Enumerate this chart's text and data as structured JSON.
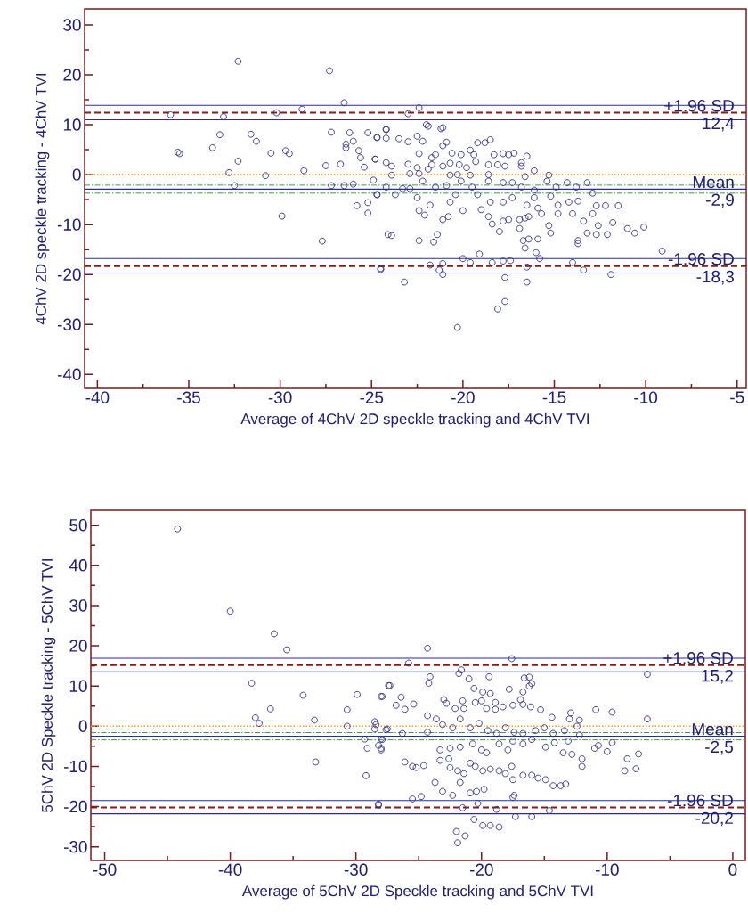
{
  "chart_data": [
    {
      "type": "scatter",
      "xlabel": "Average of 4ChV 2D speckle tracking and 4ChV  TVI",
      "ylabel": "4ChV 2D speckle tracking - 4ChV  TVI",
      "marker": "circle",
      "xlim": [
        -40.7,
        -4.5
      ],
      "ylim": [
        -42.8,
        33.2
      ],
      "xticks": [
        -40,
        -35,
        -30,
        -25,
        -20,
        -15,
        -10,
        -5
      ],
      "yticks": [
        -40,
        -30,
        -20,
        -10,
        0,
        10,
        20,
        30
      ],
      "series": [
        {
          "color": "#2b2b80",
          "x": [
            -32.3,
            -27.3,
            -26.5,
            -36.0,
            -33.1,
            -30.2,
            -28.8,
            -33.3,
            -35.6,
            -35.5,
            -33.7,
            -32.3,
            -32.8,
            -31.6,
            -31.3,
            -30.5,
            -29.7,
            -29.5,
            -30.8,
            -28.7,
            -32.5,
            -29.9,
            -27.7,
            -27.2,
            -27.5,
            -26.7,
            -27.2,
            -26.5,
            -26.0,
            -26.2,
            -26.0,
            -26.4,
            -26.4,
            -25.7,
            -25.6,
            -25.4,
            -25.8,
            -25.2,
            -25.2,
            -25.2,
            -24.7,
            -24.8,
            -24.9,
            -24.7,
            -24.2,
            -24.5,
            -24.1,
            -22.4,
            -23.0,
            -22.0,
            -21.9,
            -21.2,
            -21.1,
            -24.2,
            -24.7,
            -24.2,
            -23.5,
            -23.0,
            -22.5,
            -22.2,
            -21.1,
            -20.9,
            -22.4,
            -21.7,
            -21.5,
            -20.6,
            -20.1,
            -19.6,
            -19.4,
            -19.2,
            -18.8,
            -18.5,
            -18.3,
            -17.8,
            -17.5,
            -17.2,
            -16.5,
            -24.8,
            -24.2,
            -23.9,
            -23.0,
            -22.5,
            -21.9,
            -21.7,
            -21.1,
            -20.7,
            -20.2,
            -19.8,
            -19.3,
            -18.6,
            -18.1,
            -17.7,
            -16.8,
            -16.8,
            -16.1,
            -15.3,
            -23.9,
            -22.9,
            -22.4,
            -20.7,
            -20.3,
            -19.6,
            -18.6,
            -16.6,
            -24.2,
            -23.3,
            -22.9,
            -22.2,
            -21.5,
            -20.9,
            -20.1,
            -19.5,
            -18.6,
            -17.8,
            -17.3,
            -16.8,
            -16.1,
            -15.4,
            -14.9,
            -14.3,
            -13.8,
            -13.2,
            -12.9,
            -24.7,
            -23.7,
            -22.5,
            -21.8,
            -20.7,
            -20.4,
            -19.2,
            -18.5,
            -17.8,
            -17.3,
            -16.5,
            -16.1,
            -15.9,
            -15.2,
            -14.8,
            -14.2,
            -13.7,
            -12.7,
            -12.2,
            -11.5,
            -22.4,
            -22.1,
            -21.1,
            -20.8,
            -20.0,
            -19.0,
            -18.6,
            -18.4,
            -18.0,
            -17.8,
            -17.5,
            -16.9,
            -16.6,
            -16.4,
            -15.7,
            -16.9,
            -15.3,
            -14.8,
            -14.0,
            -13.4,
            -12.9,
            -12.6,
            -12.1,
            -11.8,
            -15.2,
            -13.2,
            -12.7,
            -11.0,
            -10.6,
            -10.1,
            -23.9,
            -22.4,
            -21.6,
            -21.4,
            -16.7,
            -16.4,
            -15.9,
            -16.6,
            -16.0,
            -15.8,
            -13.7,
            -13.7,
            -9.1,
            -20.0,
            -19.6,
            -19.1,
            -18.4,
            -17.8,
            -17.4,
            -21.8,
            -21.3,
            -21.1,
            -21.1,
            -14.0,
            -13.4,
            -11.9,
            -16.5,
            -24.5,
            -23.2,
            -17.7,
            -16.5,
            -18.1,
            -17.7,
            -20.3
          ],
          "values": [
            22.7,
            20.8,
            14.4,
            12.0,
            11.6,
            12.4,
            13.1,
            8.0,
            4.5,
            4.2,
            5.4,
            2.7,
            0.4,
            8.1,
            6.7,
            4.3,
            4.8,
            4.2,
            -0.2,
            0.8,
            -2.2,
            -8.3,
            -13.3,
            8.5,
            1.8,
            2.1,
            -2.2,
            -2.2,
            -1.9,
            8.4,
            6.7,
            6.1,
            5.4,
            4.8,
            3.4,
            1.5,
            -6.2,
            -5.6,
            -7.7,
            8.4,
            7.4,
            3.1,
            -1.1,
            -4.0,
            9.0,
            -19.0,
            -12.0,
            13.4,
            12.2,
            10.0,
            9.7,
            9.2,
            9.4,
            9.1,
            7.5,
            7.3,
            7.2,
            6.6,
            7.7,
            6.7,
            5.8,
            6.5,
            4.2,
            3.4,
            4.0,
            4.3,
            4.0,
            4.9,
            4.0,
            6.4,
            6.4,
            7.0,
            4.0,
            4.2,
            4.0,
            4.3,
            3.7,
            3.1,
            2.4,
            1.7,
            2.1,
            1.4,
            1.1,
            2.0,
            1.7,
            2.3,
            2.0,
            1.4,
            2.6,
            2.0,
            2.0,
            1.7,
            1.7,
            2.4,
            0.8,
            -0.1,
            -0.1,
            0.2,
            0.2,
            -0.1,
            0.0,
            -0.1,
            0.0,
            -0.4,
            -2.5,
            -2.8,
            -2.8,
            -1.3,
            -2.5,
            -2.2,
            -1.3,
            -2.5,
            -1.3,
            -1.6,
            -1.6,
            -2.5,
            -3.1,
            -1.3,
            -2.5,
            -1.6,
            -2.5,
            -1.6,
            -3.7,
            -4.0,
            -4.0,
            -4.6,
            -6.1,
            -5.5,
            -4.0,
            -4.0,
            -5.5,
            -5.5,
            -4.6,
            -6.1,
            -4.6,
            -6.7,
            -4.3,
            -6.1,
            -5.5,
            -5.3,
            -6.2,
            -6.2,
            -6.2,
            -7.2,
            -8.1,
            -9.0,
            -8.4,
            -7.2,
            -7.0,
            -8.4,
            -9.9,
            -11.4,
            -9.3,
            -9.0,
            -9.0,
            -8.7,
            -8.4,
            -7.8,
            -10.8,
            -10.2,
            -7.8,
            -7.8,
            -9.3,
            -7.8,
            -10.2,
            -12.0,
            -9.6,
            -11.7,
            -11.7,
            -12.0,
            -10.8,
            -11.7,
            -10.5,
            -12.2,
            -13.2,
            -13.5,
            -12.0,
            -13.2,
            -12.9,
            -12.9,
            -14.7,
            -15.6,
            -16.8,
            -13.2,
            -13.8,
            -15.3,
            -16.8,
            -17.6,
            -15.9,
            -17.6,
            -17.3,
            -17.2,
            -18.1,
            -19.1,
            -20.0,
            -17.8,
            -17.6,
            -19.1,
            -20.0,
            -18.5,
            -18.8,
            -21.5,
            -20.6,
            -21.5,
            -26.9,
            -25.4,
            -30.6
          ]
        }
      ],
      "ref_lines": [
        {
          "axis": "y",
          "value": 13.9,
          "color": "#2a2aa8",
          "line_style": "solid"
        },
        {
          "axis": "y",
          "value": 12.4,
          "label": "+1.96 SD",
          "color": "#8b1a1a",
          "line_style": "dashed"
        },
        {
          "axis": "y",
          "value": 11.0,
          "color": "#2a2aa8",
          "line_style": "solid"
        },
        {
          "axis": "y",
          "value": 0,
          "color": "#f0a030",
          "line_style": "dotted"
        },
        {
          "axis": "y",
          "value": -2.1,
          "color": "#2e8b2e",
          "line_style": "dashdot"
        },
        {
          "axis": "y",
          "value": -2.9,
          "label": "Mean",
          "color": "#2a2aa8",
          "line_style": "solid"
        },
        {
          "axis": "y",
          "value": -3.7,
          "color": "#2e8b2e",
          "line_style": "dashdot"
        },
        {
          "axis": "y",
          "value": -16.8,
          "color": "#2a2aa8",
          "line_style": "solid"
        },
        {
          "axis": "y",
          "value": -18.3,
          "label": "-1.96 SD",
          "color": "#8b1a1a",
          "line_style": "dashed"
        },
        {
          "axis": "y",
          "value": -19.7,
          "color": "#2a2aa8",
          "line_style": "solid"
        }
      ],
      "annotations": [
        {
          "text": "12,4",
          "y": 12.4
        },
        {
          "text": "-2,9",
          "y": -2.9
        },
        {
          "text": "-18,3",
          "y": -18.3
        }
      ]
    },
    {
      "type": "scatter",
      "xlabel": "Average of 5ChV 2D Speckle tracking and 5ChV TVI",
      "ylabel": "5ChV 2D Speckle tracking - 5ChV TVI",
      "marker": "circle",
      "xlim": [
        -51.1,
        1.0
      ],
      "ylim": [
        -33.4,
        53.7
      ],
      "xticks": [
        -50,
        -40,
        -30,
        -20,
        -10,
        0
      ],
      "yticks": [
        -30,
        -20,
        -10,
        0,
        10,
        20,
        30,
        40,
        50
      ],
      "series": [
        {
          "color": "#2b2b80",
          "x": [
            -44.2,
            -40.0,
            -36.5,
            -35.5,
            -38.3,
            -38.0,
            -37.7,
            -36.8,
            -34.2,
            -33.3,
            -33.2,
            -30.7,
            -30.7,
            -29.9,
            -28.0,
            -27.4,
            -28.5,
            -28.5,
            -27.6,
            -29.3,
            -28.0,
            -29.1,
            -28.2,
            -28.0,
            -29.2,
            -28.2,
            -24.3,
            -25.8,
            -17.6,
            -6.8,
            -21.6,
            -21.8,
            -24.1,
            -24.2,
            -21.0,
            -19.4,
            -16.6,
            -16.2,
            -16.0,
            -16.2,
            -27.3,
            -27.9,
            -26.4,
            -26.8,
            -26.1,
            -25.4,
            -20.6,
            -19.9,
            -19.3,
            -17.8,
            -16.7,
            -23.0,
            -22.8,
            -22.1,
            -21.5,
            -21.4,
            -20.5,
            -20.0,
            -19.6,
            -18.9,
            -18.9,
            -18.3,
            -17.5,
            -16.9,
            -16.7,
            -16.1,
            -15.3,
            -14.4,
            -12.9,
            -12.2,
            -13.0,
            -10.9,
            -9.6,
            -6.8,
            -28.4,
            -27.5,
            -26.3,
            -24.3,
            -24.3,
            -23.6,
            -23.1,
            -22.3,
            -21.7,
            -20.9,
            -20.2,
            -19.5,
            -18.8,
            -18.1,
            -17.4,
            -16.7,
            -15.7,
            -15.0,
            -14.3,
            -13.4,
            -12.4,
            -12.2,
            -28.0,
            -27.9,
            -23.3,
            -22.5,
            -21.7,
            -20.7,
            -20.0,
            -19.6,
            -18.6,
            -17.9,
            -17.5,
            -16.7,
            -16.0,
            -14.9,
            -14.2,
            -13.1,
            -11.0,
            -10.7,
            -9.6,
            -10.0,
            -13.5,
            -12.8,
            -12.0,
            -12.0,
            -8.4,
            -7.5,
            -8.6,
            -7.7,
            -26.1,
            -25.5,
            -25.2,
            -24.6,
            -23.3,
            -22.6,
            -22.5,
            -21.9,
            -21.4,
            -21.7,
            -20.9,
            -20.5,
            -19.9,
            -19.3,
            -18.6,
            -18.1,
            -17.5,
            -16.7,
            -16.0,
            -15.5,
            -14.9,
            -14.3,
            -13.7,
            -13.3,
            -17.6,
            -23.7,
            -23.1,
            -22.3,
            -20.9,
            -20.4,
            -19.8,
            -25.5,
            -24.8,
            -28.2,
            -17.4,
            -17.5,
            -21.5,
            -20.3,
            -18.8,
            -17.3,
            -16.0,
            -14.6,
            -20.6,
            -19.9,
            -19.3,
            -18.6,
            -22.0,
            -21.3,
            -21.9
          ],
          "values": [
            49.1,
            28.6,
            23.0,
            19.0,
            10.7,
            2.1,
            0.7,
            4.3,
            7.7,
            1.5,
            -8.9,
            4.1,
            0.0,
            7.9,
            7.4,
            10.1,
            1.1,
            -0.7,
            -0.9,
            -3.2,
            -3.2,
            -5.5,
            -4.8,
            -5.9,
            -12.3,
            -19.6,
            19.4,
            15.7,
            16.8,
            12.9,
            14.0,
            13.1,
            12.3,
            10.7,
            11.8,
            12.3,
            12.0,
            12.2,
            10.6,
            10.0,
            10.1,
            7.4,
            7.2,
            5.2,
            4.2,
            5.5,
            9.4,
            8.5,
            8.1,
            9.2,
            8.5,
            6.6,
            5.7,
            4.4,
            6.3,
            4.4,
            5.9,
            6.3,
            4.4,
            5.9,
            4.2,
            4.8,
            5.2,
            6.6,
            5.4,
            4.8,
            4.1,
            2.2,
            3.3,
            1.5,
            1.8,
            4.1,
            3.5,
            1.8,
            0.4,
            -0.7,
            -1.8,
            2.6,
            -1.5,
            1.8,
            0.4,
            -0.4,
            1.8,
            -0.4,
            0.7,
            -1.1,
            -1.8,
            -0.4,
            -1.5,
            -1.8,
            -1.1,
            -0.4,
            -1.8,
            -1.1,
            0.0,
            -2.2,
            -5.5,
            -3.3,
            -5.9,
            -5.5,
            -5.2,
            -4.4,
            -5.9,
            -6.6,
            -4.4,
            -5.9,
            -3.7,
            -4.4,
            -3.3,
            -5.2,
            -4.1,
            -3.7,
            -5.5,
            -4.8,
            -4.1,
            -6.3,
            -6.6,
            -7.0,
            -8.1,
            -10.0,
            -8.1,
            -6.9,
            -11.1,
            -10.6,
            -8.9,
            -10.0,
            -10.3,
            -9.8,
            -8.5,
            -8.1,
            -10.3,
            -11.1,
            -11.8,
            -14.0,
            -9.2,
            -10.0,
            -11.1,
            -10.7,
            -11.1,
            -11.8,
            -13.3,
            -12.2,
            -12.2,
            -12.9,
            -13.3,
            -14.8,
            -14.8,
            -14.4,
            -10.0,
            -14.0,
            -16.2,
            -17.2,
            -16.6,
            -16.2,
            -15.7,
            -18.1,
            -17.5,
            -19.4,
            -17.2,
            -17.7,
            -20.3,
            -19.2,
            -20.7,
            -22.5,
            -22.5,
            -21.0,
            -23.2,
            -24.7,
            -24.7,
            -25.1,
            -26.2,
            -27.3,
            -29.0
          ]
        }
      ],
      "ref_lines": [
        {
          "axis": "y",
          "value": 16.9,
          "color": "#2a2aa8",
          "line_style": "solid"
        },
        {
          "axis": "y",
          "value": 15.2,
          "label": "+1.96 SD",
          "color": "#8b1a1a",
          "line_style": "dashed"
        },
        {
          "axis": "y",
          "value": 13.5,
          "color": "#2a2aa8",
          "line_style": "solid"
        },
        {
          "axis": "y",
          "value": 0,
          "color": "#f0a030",
          "line_style": "dotted"
        },
        {
          "axis": "y",
          "value": -1.6,
          "color": "#2e8b2e",
          "line_style": "dashdot"
        },
        {
          "axis": "y",
          "value": -2.5,
          "label": "Mean",
          "color": "#2a2aa8",
          "line_style": "solid"
        },
        {
          "axis": "y",
          "value": -3.4,
          "color": "#2e8b2e",
          "line_style": "dashdot"
        },
        {
          "axis": "y",
          "value": -18.5,
          "color": "#2a2aa8",
          "line_style": "solid"
        },
        {
          "axis": "y",
          "value": -20.2,
          "label": "-1.96 SD",
          "color": "#8b1a1a",
          "line_style": "dashed"
        },
        {
          "axis": "y",
          "value": -21.8,
          "color": "#2a2aa8",
          "line_style": "solid"
        }
      ],
      "annotations": [
        {
          "text": "15,2",
          "y": 15.2
        },
        {
          "text": "-2,5",
          "y": -2.5
        },
        {
          "text": "-20,2",
          "y": -20.2
        }
      ]
    }
  ]
}
